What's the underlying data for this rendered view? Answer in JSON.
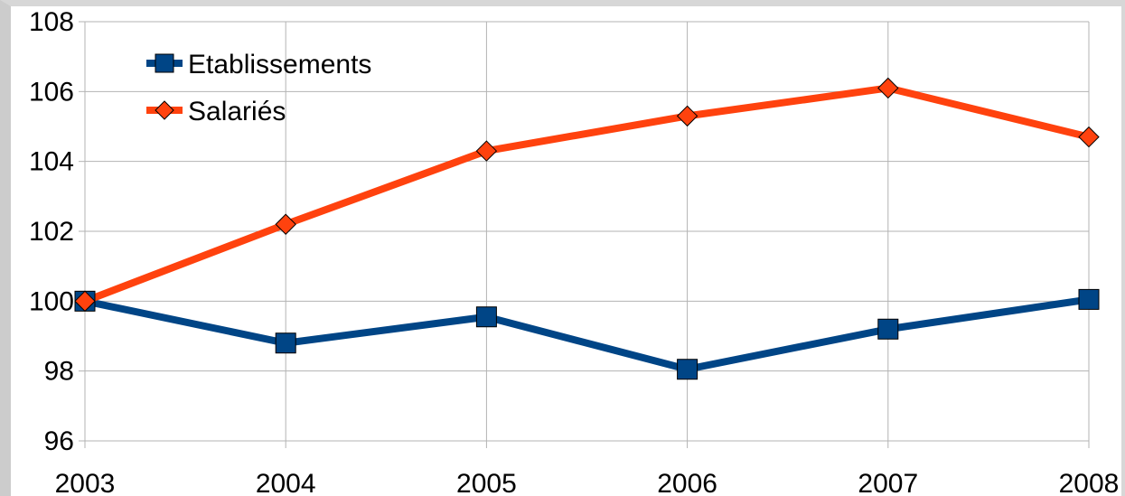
{
  "chart_data": {
    "type": "line",
    "title": "",
    "xlabel": "",
    "ylabel": "",
    "categories": [
      "2003",
      "2004",
      "2005",
      "2006",
      "2007",
      "2008"
    ],
    "ylim": [
      96,
      108
    ],
    "yticks": [
      "96",
      "98",
      "100",
      "102",
      "104",
      "106",
      "108"
    ],
    "grid": true,
    "legend_position": "top-left",
    "series": [
      {
        "name": "Etablissements",
        "values": [
          100.0,
          98.8,
          99.55,
          98.05,
          99.2,
          100.05
        ],
        "color": "#004586",
        "marker": "square"
      },
      {
        "name": "Salariés",
        "values": [
          100.0,
          102.2,
          104.3,
          105.3,
          106.1,
          104.7
        ],
        "color": "#ff420e",
        "marker": "diamond"
      }
    ]
  }
}
